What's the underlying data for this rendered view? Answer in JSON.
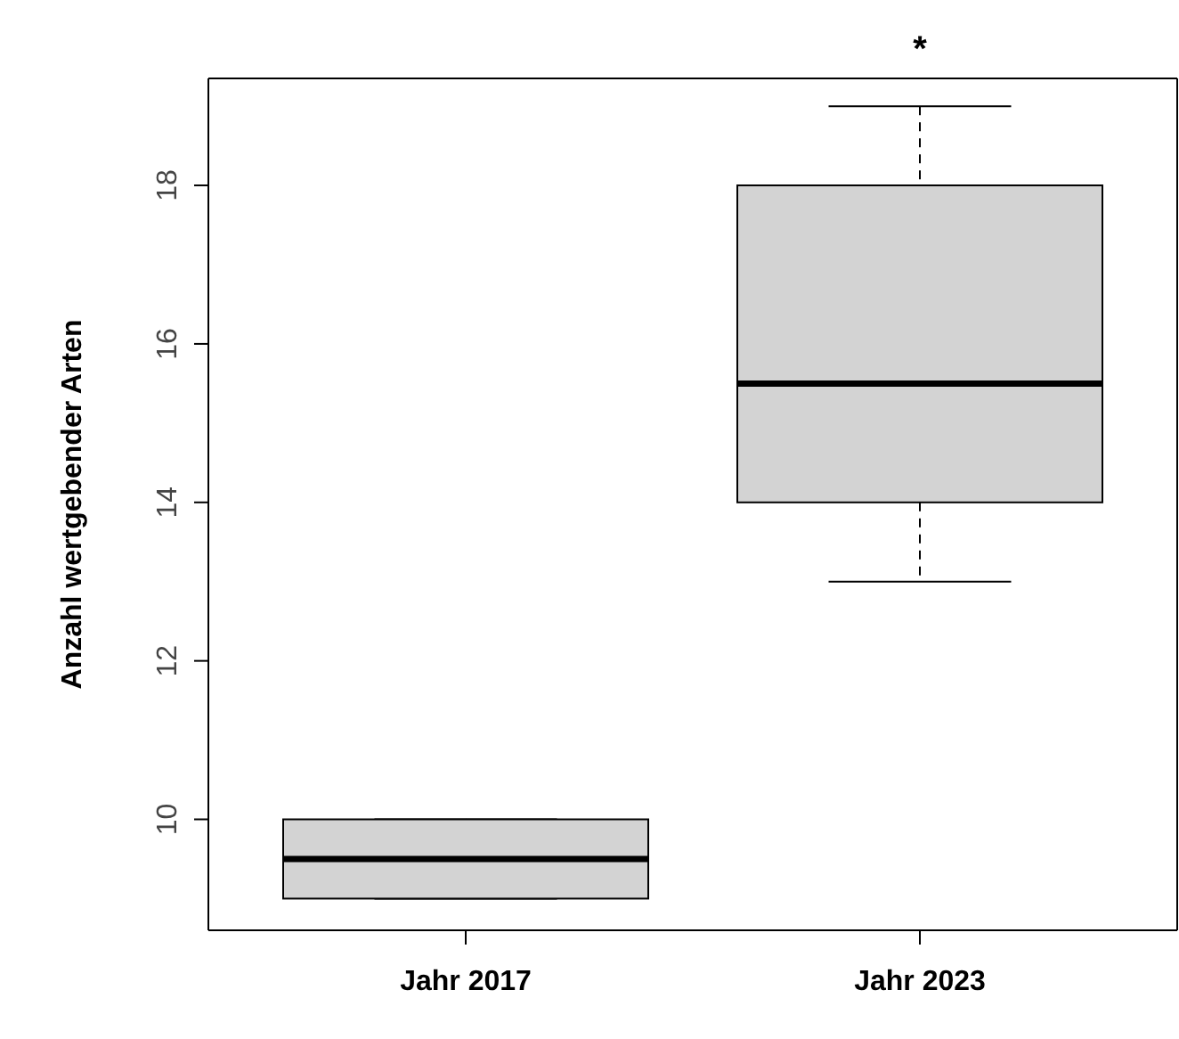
{
  "chart_data": {
    "type": "box",
    "ylabel": "Anzahl wertgebender Arten",
    "categories": [
      "Jahr 2017",
      "Jahr 2023"
    ],
    "boxes": [
      {
        "low": 9,
        "q1": 9,
        "median": 9.5,
        "q3": 10,
        "high": 10
      },
      {
        "low": 13,
        "q1": 14,
        "median": 15.5,
        "q3": 18,
        "high": 19
      }
    ],
    "color": "#d3d3d3",
    "ylim": [
      8.6,
      19.35
    ],
    "yticks": [
      10,
      12,
      14,
      16,
      18
    ],
    "grid": false,
    "annotations": [
      "*"
    ]
  }
}
